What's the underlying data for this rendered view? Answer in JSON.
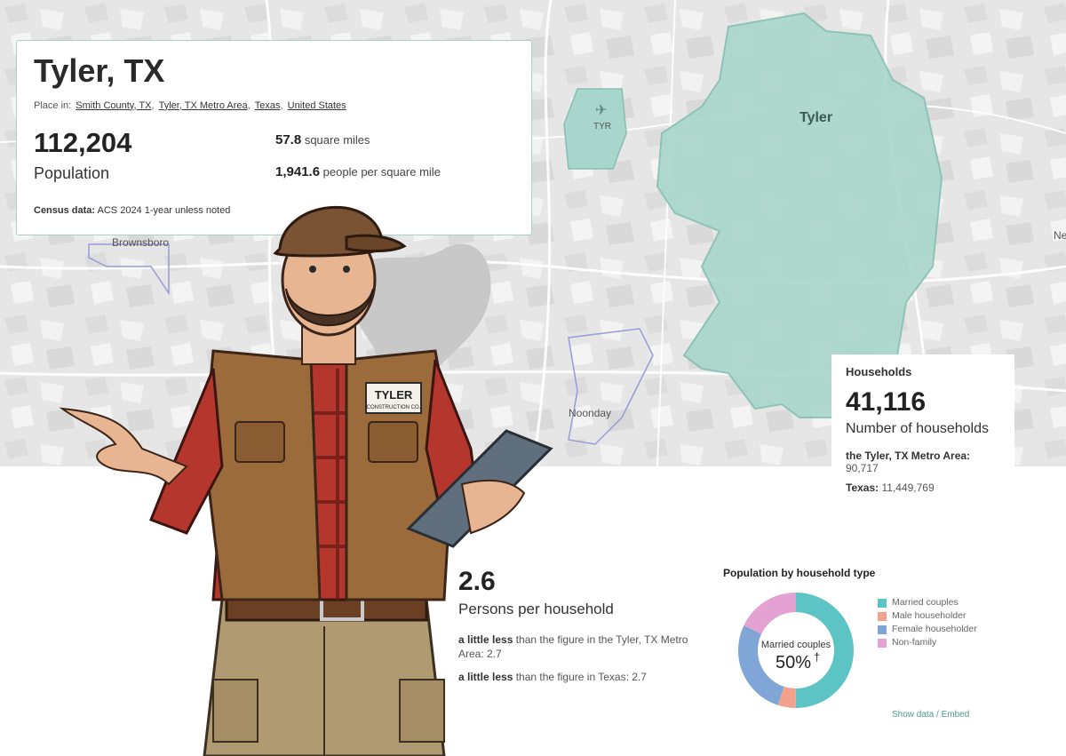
{
  "map": {
    "labels": {
      "tyler": "Tyler",
      "brownsboro": "Brownsboro",
      "noonday": "Noonday",
      "tyr": "TYR",
      "edge": "Ne"
    },
    "colors": {
      "city_fill": "#a9d6cc",
      "city_stroke": "#86bfb3",
      "boundary": "#9a9ad6",
      "water": "#c8c8c8"
    }
  },
  "place": {
    "title": "Tyler, TX",
    "place_in_label": "Place in:",
    "parents": [
      "Smith County, TX",
      "Tyler, TX Metro Area",
      "Texas",
      "United States"
    ],
    "population": "112,204",
    "population_label": "Population",
    "area_value": "57.8",
    "area_unit": "square miles",
    "density_value": "1,941.6",
    "density_unit": "people per square mile",
    "census_label": "Census data:",
    "census_value": "ACS 2024 1-year unless noted"
  },
  "households": {
    "title": "Households",
    "number": "41,116",
    "label": "Number of households",
    "compare_metro_label": "the Tyler, TX Metro Area:",
    "compare_metro_value": "90,717",
    "compare_state_label": "Texas:",
    "compare_state_value": "11,449,769"
  },
  "persons_per_household": {
    "number": "2.6",
    "label": "Persons per household",
    "compare_metro_bold": "a little less",
    "compare_metro_text": "than the figure in the Tyler, TX Metro Area: 2.7",
    "compare_state_bold": "a little less",
    "compare_state_text": "than the figure in Texas: 2.7"
  },
  "household_type": {
    "title": "Population by household type",
    "center_label": "Married couples",
    "center_value": "50%",
    "center_mark": "†",
    "show_data": "Show data / Embed"
  },
  "chart_data": {
    "type": "pie",
    "title": "Population by household type",
    "categories": [
      "Married couples",
      "Male householder",
      "Female householder",
      "Non-family"
    ],
    "values": [
      50,
      5,
      27,
      18
    ],
    "colors": [
      "#5cc4c4",
      "#f2a28c",
      "#7fa6d6",
      "#e4a2d2"
    ],
    "legend_position": "right"
  },
  "character": {
    "badge_line1": "TYLER",
    "badge_line2": "CONSTRUCTION CO."
  }
}
